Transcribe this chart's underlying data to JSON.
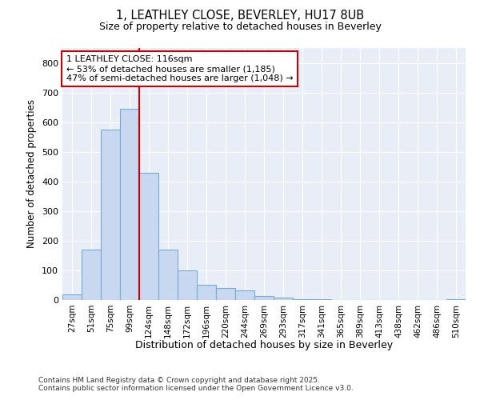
{
  "title1": "1, LEATHLEY CLOSE, BEVERLEY, HU17 8UB",
  "title2": "Size of property relative to detached houses in Beverley",
  "xlabel": "Distribution of detached houses by size in Beverley",
  "ylabel": "Number of detached properties",
  "categories": [
    "27sqm",
    "51sqm",
    "75sqm",
    "99sqm",
    "124sqm",
    "148sqm",
    "172sqm",
    "196sqm",
    "220sqm",
    "244sqm",
    "269sqm",
    "293sqm",
    "317sqm",
    "341sqm",
    "365sqm",
    "389sqm",
    "413sqm",
    "438sqm",
    "462sqm",
    "486sqm",
    "510sqm"
  ],
  "values": [
    20,
    170,
    575,
    645,
    430,
    170,
    100,
    50,
    40,
    33,
    13,
    8,
    3,
    2,
    1,
    1,
    1,
    1,
    1,
    1,
    2
  ],
  "bar_color": "#c8d8f0",
  "bar_edge_color": "#7aaad0",
  "vline_color": "#cc0000",
  "vline_x": 3.5,
  "annotation_text": "1 LEATHLEY CLOSE: 116sqm\n← 53% of detached houses are smaller (1,185)\n47% of semi-detached houses are larger (1,048) →",
  "annotation_box_facecolor": "#ffffff",
  "annotation_box_edgecolor": "#cc0000",
  "ylim": [
    0,
    850
  ],
  "yticks": [
    0,
    100,
    200,
    300,
    400,
    500,
    600,
    700,
    800
  ],
  "grid_color": "#ffffff",
  "plot_bg_color": "#e8eef8",
  "fig_bg_color": "#ffffff",
  "footer": "Contains HM Land Registry data © Crown copyright and database right 2025.\nContains public sector information licensed under the Open Government Licence v3.0."
}
